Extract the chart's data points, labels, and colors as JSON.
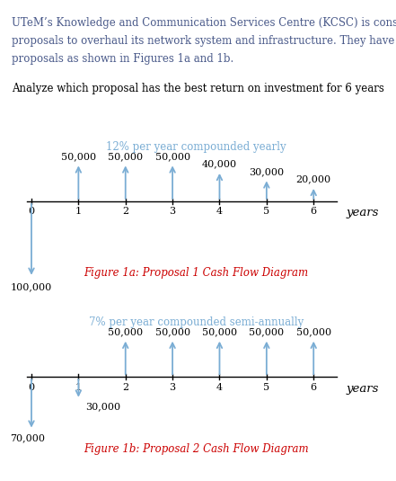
{
  "title_line1": "UTeM’s Knowledge and Communication Services Centre (KCSC) is considering two",
  "title_line2": "proposals to overhaul its network system and infrastructure. They have received two",
  "title_line3": "proposals as shown in Figures 1a and 1b.",
  "subtitle_text": "Analyze which proposal has the best return on investment for 6 years",
  "proposal1_rate": "12% per year compounded yearly",
  "proposal1_cashflows": [
    0,
    50000,
    50000,
    50000,
    40000,
    30000,
    20000
  ],
  "proposal1_initial": -100000,
  "proposal1_label": "Figure 1a: Proposal 1 Cash Flow Diagram",
  "proposal2_rate": "7% per year compounded semi-annually",
  "proposal2_cashflows": [
    0,
    0,
    50000,
    50000,
    50000,
    50000,
    50000
  ],
  "proposal2_initial_0": -70000,
  "proposal2_initial_1": -30000,
  "proposal2_label": "Figure 1b: Proposal 2 Cash Flow Diagram",
  "arrow_color": "#7aadd4",
  "body_text_color": "#4a5a8a",
  "subtitle_color": "#000000",
  "rate_color": "#7aadd4",
  "axis_color": "#000000",
  "value_color": "#000000",
  "fig_label_color": "#cc0000",
  "fig_bg": "#ffffff",
  "body_fontsize": 8.5,
  "label_fontsize": 8.5,
  "rate_fontsize": 8.5,
  "value_fontsize": 8.0,
  "tick_fontsize": 8.0,
  "years_fontsize": 9.5
}
